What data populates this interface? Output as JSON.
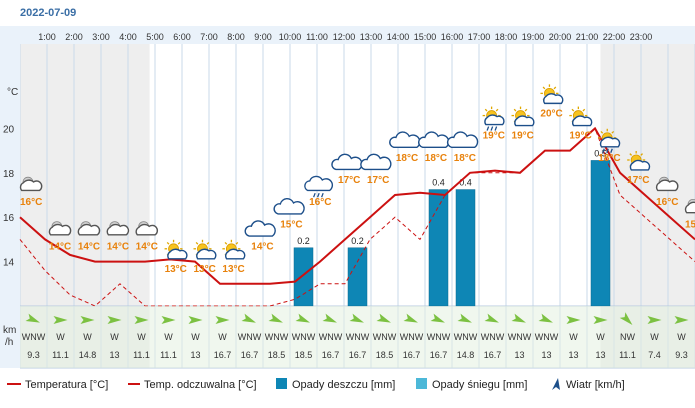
{
  "date": "2022-07-09",
  "chart_data": {
    "type": "line+bar",
    "hours": [
      "1:00",
      "2:00",
      "3:00",
      "4:00",
      "5:00",
      "6:00",
      "7:00",
      "8:00",
      "9:00",
      "10:00",
      "11:00",
      "12:00",
      "13:00",
      "14:00",
      "15:00",
      "16:00",
      "17:00",
      "18:00",
      "19:00",
      "20:00",
      "21:00",
      "22:00",
      "23:00"
    ],
    "y_unit": "°C",
    "y_ticks": [
      "14",
      "16",
      "18",
      "20"
    ],
    "ylim": [
      12,
      23.8
    ],
    "temperature_labels": [
      "16°C",
      "14°C",
      "14°C",
      "14°C",
      "14°C",
      "13°C",
      "13°C",
      "13°C",
      "14°C",
      "15°C",
      "16°C",
      "17°C",
      "17°C",
      "18°C",
      "18°C",
      "18°C",
      "19°C",
      "19°C",
      "20°C",
      "19°C",
      "18°C",
      "17°C",
      "16°C",
      "15°C"
    ],
    "weather_icons": [
      "night-cloudy-icon",
      "night-cloudy-icon",
      "night-cloudy-icon",
      "night-cloudy-icon",
      "night-cloudy-icon",
      "partly-sunny-icon",
      "partly-sunny-icon",
      "partly-sunny-icon",
      "cloud-icon",
      "cloud-icon",
      "cloud-rain-icon",
      "cloud-icon",
      "cloud-icon",
      "cloud-icon",
      "cloud-icon",
      "cloud-icon",
      "sun-cloud-rain-icon",
      "partly-sunny-icon",
      "partly-sunny-icon",
      "partly-sunny-icon",
      "sun-cloud-rain-icon",
      "partly-sunny-icon",
      "night-cloudy-icon",
      "night-cloudy-icon"
    ],
    "temperature": [
      16.0,
      15.0,
      14.3,
      14.0,
      14.0,
      14.0,
      14.1,
      14.0,
      13.0,
      13.0,
      13.0,
      13.1,
      14.0,
      15.0,
      16.0,
      17.0,
      17.1,
      17.0,
      18.0,
      18.1,
      18.0,
      19.0,
      19.0,
      20.0,
      18.0,
      17.0,
      16.0,
      15.0
    ],
    "feels_like": [
      15.0,
      13.6,
      12.5,
      12.0,
      13.0,
      12.0,
      12.0,
      12.0,
      12.0,
      12.0,
      12.0,
      12.3,
      13.0,
      13.0,
      15.0,
      16.0,
      15.0,
      17.0,
      18.0,
      18.0,
      18.0,
      19.0,
      19.0,
      20.0,
      17.0,
      16.0,
      15.0,
      14.0
    ],
    "rain_mm": [
      0,
      0,
      0,
      0,
      0,
      0,
      0,
      0,
      0,
      0,
      0.2,
      0,
      0.2,
      0,
      0,
      0.4,
      0.4,
      0,
      0,
      0,
      0,
      0.5,
      0,
      0,
      0
    ],
    "rain_labels": [
      "0.2",
      "0.2",
      "0.4",
      "0.4",
      "0.5"
    ],
    "rain_ylim": [
      0,
      0.9
    ],
    "wind_dir": [
      "WNW",
      "W",
      "W",
      "W",
      "W",
      "W",
      "W",
      "W",
      "WNW",
      "WNW",
      "WNW",
      "WNW",
      "WNW",
      "WNW",
      "WNW",
      "WNW",
      "WNW",
      "WNW",
      "WNW",
      "WNW",
      "W",
      "W",
      "NW",
      "W",
      "W"
    ],
    "wind_speed": [
      "9.3",
      "11.1",
      "14.8",
      "13",
      "11.1",
      "11.1",
      "13",
      "16.7",
      "16.7",
      "18.5",
      "18.5",
      "16.7",
      "16.7",
      "18.5",
      "16.7",
      "16.7",
      "14.8",
      "16.7",
      "13",
      "13",
      "13",
      "13",
      "11.1",
      "7.4",
      "9.3"
    ],
    "wind_unit": [
      "km",
      "/h"
    ]
  },
  "legend": {
    "temperature": "Temperatura [°C]",
    "feels_like": "Temp. odczuwalna [°C]",
    "rain": "Opady deszczu [mm]",
    "snow": "Opady śniegu [mm]",
    "wind": "Wiatr [km/h]"
  },
  "colors": {
    "temperature": "#cc1111",
    "feels_like": "#cc1111",
    "rain": "#0e86b5",
    "snow": "#4cb8d8",
    "wind_arrow": "#7cc142",
    "night_bg": "#eeeeee",
    "day_bg": "#ffffff",
    "grid": "#c9d9ea",
    "label": "#e8820c"
  }
}
